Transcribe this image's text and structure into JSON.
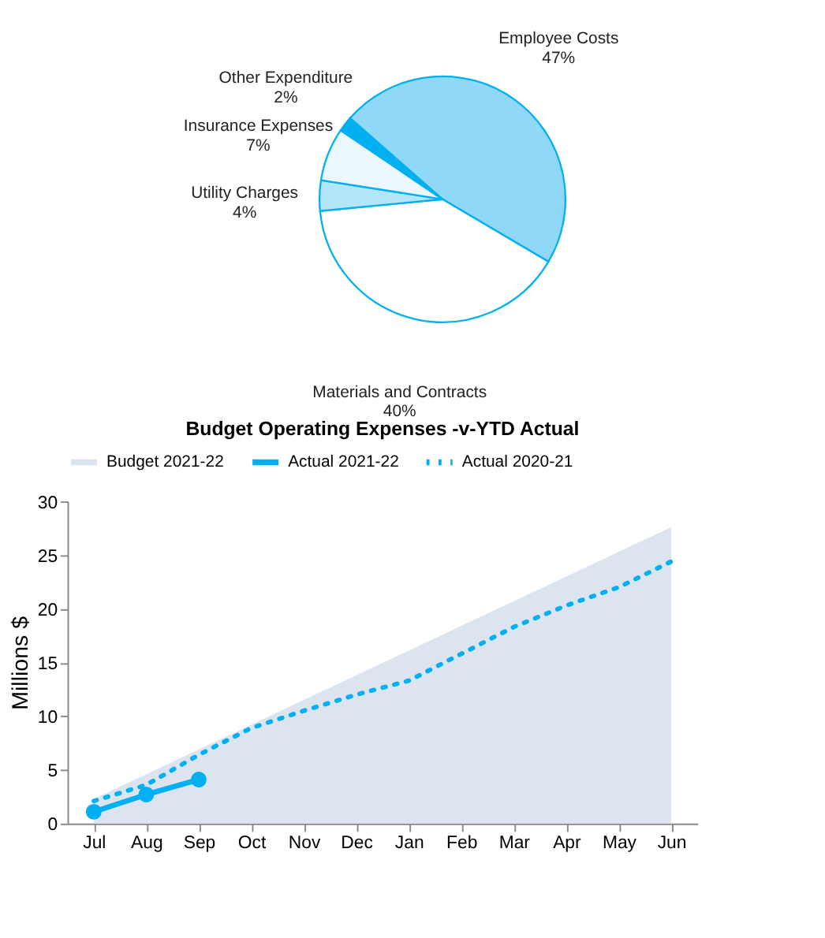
{
  "chart_data": [
    {
      "type": "pie",
      "categories": [
        "Employee Costs",
        "Materials and Contracts",
        "Utility Charges",
        "Insurance Expenses",
        "Other Expenditure"
      ],
      "values": [
        47,
        40,
        4,
        7,
        2
      ],
      "value_labels": [
        "47%",
        "40%",
        "4%",
        "7%",
        "2%"
      ],
      "colors": [
        "#8fd8f7",
        "#ffffff",
        "#b3e6fa",
        "#eaf8fe",
        "#00b0f0"
      ]
    },
    {
      "type": "area",
      "title": "Budget Operating Expenses -v-YTD Actual",
      "ylabel": "Millions $",
      "categories": [
        "Jul",
        "Aug",
        "Sep",
        "Oct",
        "Nov",
        "Dec",
        "Jan",
        "Feb",
        "Mar",
        "Apr",
        "May",
        "Jun"
      ],
      "series": [
        {
          "name": "Budget 2021-22",
          "type": "area",
          "color": "#dce4f0",
          "values": [
            2.3,
            4.6,
            6.9,
            9.2,
            11.5,
            13.8,
            16.1,
            18.4,
            20.7,
            23.0,
            25.3,
            27.6
          ]
        },
        {
          "name": "Actual 2021-22",
          "type": "line",
          "color": "#00b0f0",
          "marker": "circle",
          "line_style": "solid",
          "values": [
            1.1,
            2.7,
            4.1,
            null,
            null,
            null,
            null,
            null,
            null,
            null,
            null,
            null
          ]
        },
        {
          "name": "Actual 2020-21",
          "type": "line",
          "color": "#00b0f0",
          "marker": "none",
          "line_style": "dotted",
          "values": [
            2.1,
            3.6,
            6.4,
            8.9,
            10.5,
            12.0,
            13.3,
            15.8,
            18.3,
            20.3,
            22.0,
            24.4
          ]
        }
      ],
      "ylim": [
        0,
        30
      ],
      "yticks": [
        0,
        5,
        10,
        15,
        20,
        25,
        30
      ],
      "grid": false,
      "legend": "top"
    }
  ]
}
